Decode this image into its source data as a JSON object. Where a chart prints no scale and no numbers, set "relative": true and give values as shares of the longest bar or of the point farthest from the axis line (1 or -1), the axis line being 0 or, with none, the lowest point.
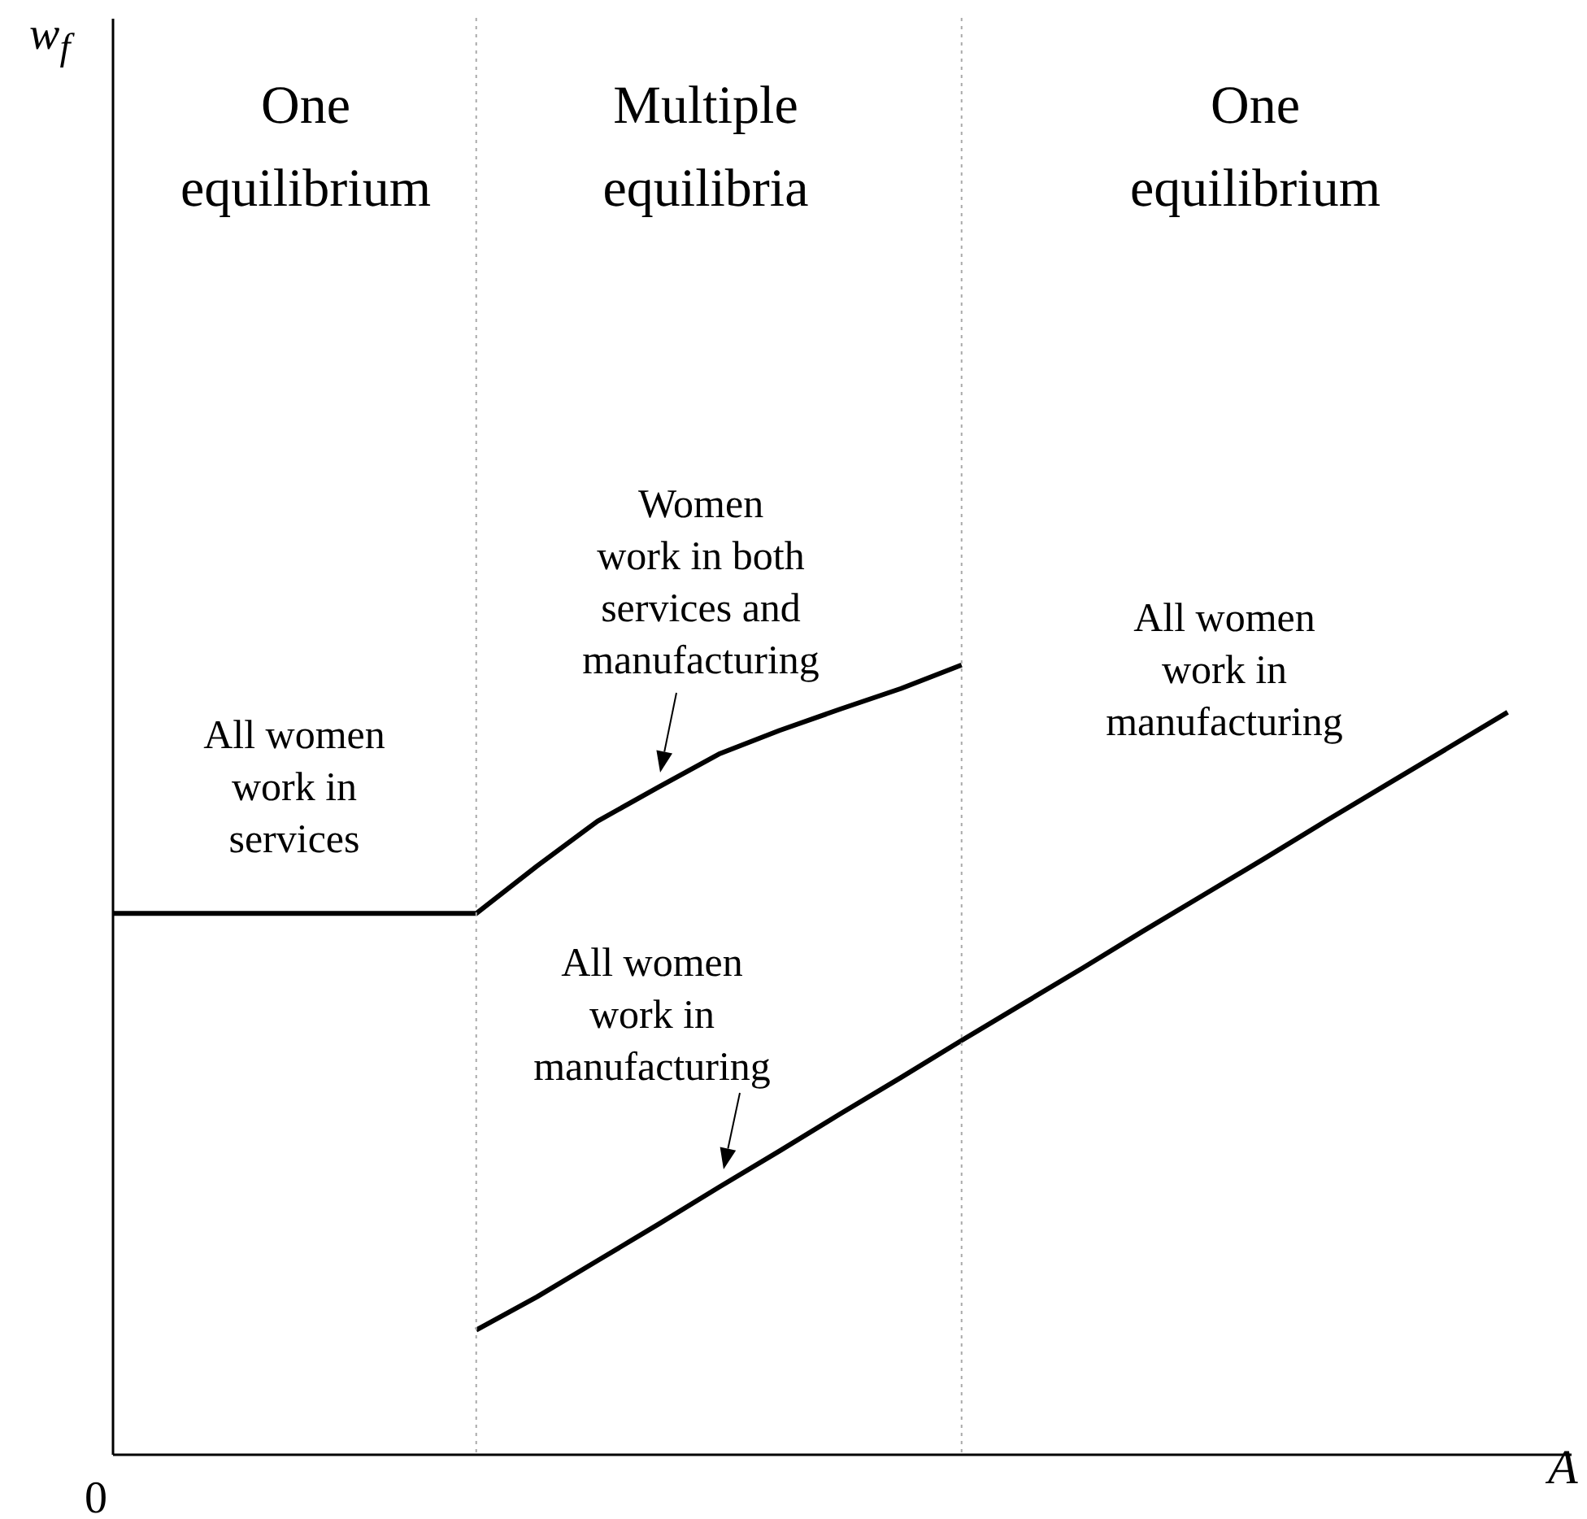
{
  "chart_data": {
    "type": "line",
    "relative": true,
    "xlabel": "A",
    "marker": "none",
    "line_style": "solid",
    "categories": [
      null,
      null,
      null,
      null,
      null,
      null,
      null,
      null,
      null,
      null,
      null,
      null,
      null,
      null,
      null,
      null,
      null,
      null,
      null,
      null,
      null,
      null,
      null,
      null
    ],
    "series": [
      {
        "color": "#000000",
        "values": [
          0.685,
          0.685,
          0.685,
          0.685,
          0.685,
          0.685,
          0.685,
          0.745,
          0.802,
          0.845,
          0.887,
          0.917,
          0.944,
          0.97,
          1.0,
          null,
          null,
          null,
          null,
          null,
          null,
          null,
          null,
          null
        ]
      },
      {
        "color": "#000000",
        "values": [
          null,
          null,
          null,
          null,
          null,
          null,
          0.157,
          0.199,
          0.245,
          0.291,
          0.338,
          0.384,
          0.431,
          0.477,
          0.524,
          0.57,
          0.616,
          0.663,
          0.709,
          0.755,
          0.802,
          0.848,
          0.894,
          0.94
        ]
      }
    ],
    "ref_lines": [
      {
        "axis": "x",
        "color": "#aaaaaa",
        "line_style": "dotted"
      },
      {
        "axis": "x",
        "color": "#aaaaaa",
        "line_style": "dotted"
      }
    ],
    "annotations": [
      "0",
      "One\nequilibrium",
      "Multiple\nequilibria",
      "One\nequilibrium",
      "All women\nwork in\nservices",
      "Women\nwork in both\nservices and\nmanufacturing",
      "All women\nwork in\nmanufacturing",
      "All women\nwork in\nmanufacturing",
      "w$_{f}$"
    ]
  }
}
